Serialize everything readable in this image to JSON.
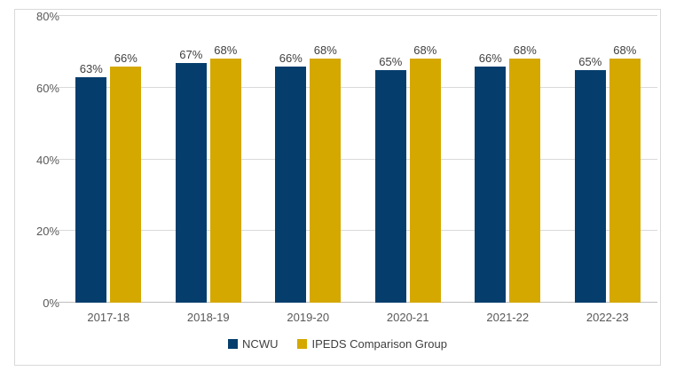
{
  "chart_data": {
    "type": "bar",
    "title": "",
    "categories": [
      "2017-18",
      "2018-19",
      "2019-20",
      "2020-21",
      "2021-22",
      "2022-23"
    ],
    "series": [
      {
        "name": "NCWU",
        "color": "#053E6D",
        "values": [
          63,
          67,
          66,
          65,
          66,
          65
        ]
      },
      {
        "name": "IPEDS Comparison Group",
        "color": "#D5A800",
        "values": [
          66,
          68,
          68,
          68,
          68,
          68
        ]
      }
    ],
    "y_ticks": [
      0,
      20,
      40,
      60,
      80
    ],
    "y_tick_suffix": "%",
    "ylim": [
      0,
      80
    ],
    "grid": true,
    "legend_position": "bottom",
    "data_labels": true,
    "data_label_suffix": "%"
  },
  "colors": {
    "background": "#FFFFFF",
    "frame_border": "#D9D9D9",
    "gridline": "#D9D9D9",
    "axis_line": "#BFBFBF",
    "axis_text": "#595959",
    "data_label_text": "#404040",
    "legend_text": "#404040"
  }
}
